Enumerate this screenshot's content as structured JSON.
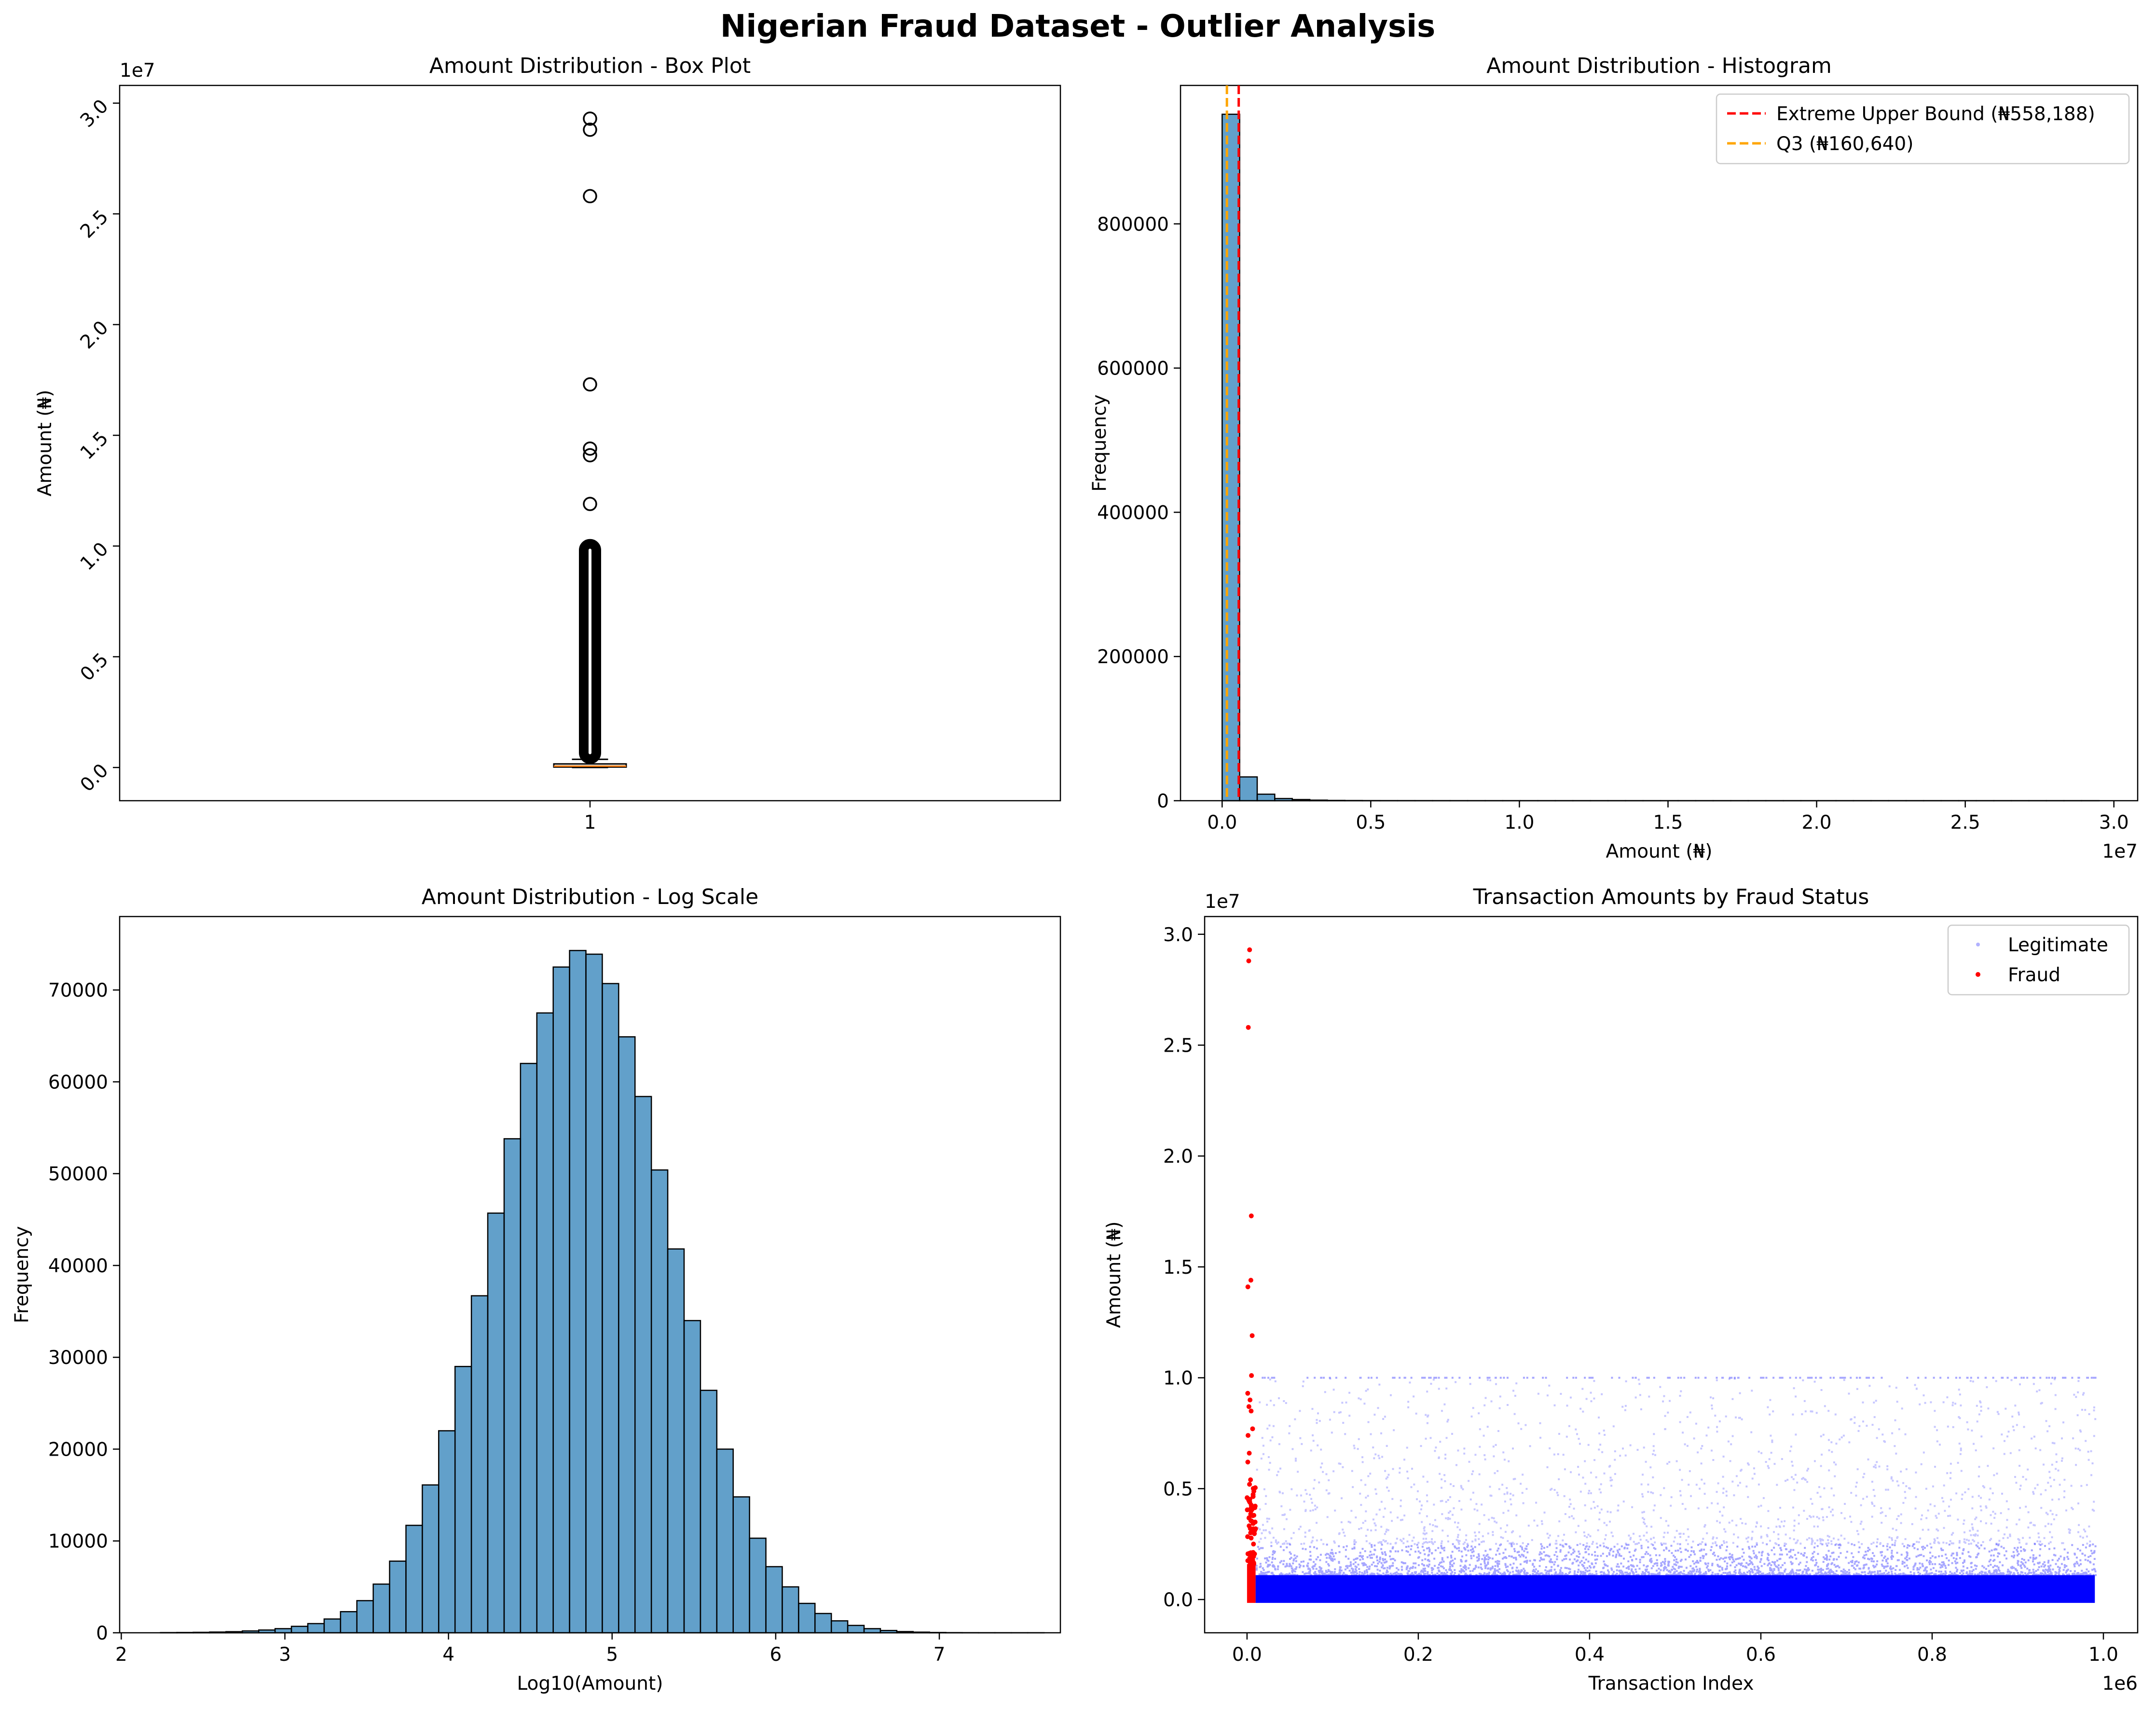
{
  "figure": {
    "title": "Nigerian Fraud Dataset - Outlier Analysis"
  },
  "chart_data": [
    {
      "id": "boxplot",
      "type": "box",
      "title": "Amount Distribution - Box Plot",
      "xlabel": "",
      "ylabel": "Amount (₦)",
      "categories": [
        "1"
      ],
      "y_scale_note": "1e7",
      "ylim": [
        -1500000,
        30800000
      ],
      "yticks": [
        0,
        5000000,
        10000000,
        15000000,
        20000000,
        25000000,
        30000000
      ],
      "ytick_labels": [
        "0.0",
        "0.5",
        "1.0",
        "1.5",
        "2.0",
        "2.5",
        "3.0"
      ],
      "box": {
        "q1": 20000,
        "median": 60000,
        "q3": 160640,
        "whisker_low": 0,
        "whisker_high": 370000
      },
      "flier_range": [
        380000,
        10100000
      ],
      "outliers_high": [
        11900000,
        14100000,
        14400000,
        17300000,
        25800000,
        28800000,
        29300000
      ],
      "colors": {
        "box": "#000000",
        "median": "#ff7f0e"
      }
    },
    {
      "id": "histogram",
      "type": "bar",
      "title": "Amount Distribution - Histogram",
      "xlabel": "Amount (₦)",
      "ylabel": "Frequency",
      "x_scale_note": "1e7",
      "xlim": [
        -1400000,
        30800000
      ],
      "ylim": [
        0,
        992000
      ],
      "xticks": [
        0,
        5000000,
        10000000,
        15000000,
        20000000,
        25000000,
        30000000
      ],
      "xtick_labels": [
        "0.0",
        "0.5",
        "1.0",
        "1.5",
        "2.0",
        "2.5",
        "3.0"
      ],
      "yticks": [
        0,
        200000,
        400000,
        600000,
        800000
      ],
      "ytick_labels": [
        "0",
        "200000",
        "400000",
        "600000",
        "800000"
      ],
      "bin_start": 0,
      "bin_width": 590000,
      "values": [
        952000,
        33000,
        9000,
        3000,
        1600,
        800,
        400,
        250,
        150,
        100,
        80,
        60,
        40,
        30,
        20,
        15,
        15,
        10,
        10,
        10,
        10,
        8,
        6,
        5,
        4,
        3,
        3,
        2,
        2,
        2,
        2,
        2,
        2,
        2,
        2,
        2,
        2,
        2,
        2,
        2,
        2,
        2,
        2,
        2,
        2,
        2,
        2,
        2,
        2,
        2
      ],
      "color": "#1f77b4",
      "vlines": [
        {
          "label": "Extreme Upper Bound (₦558,188)",
          "x": 558188,
          "color": "#ff0000"
        },
        {
          "label": "Q3 (₦160,640)",
          "x": 160640,
          "color": "#ffa500"
        }
      ],
      "legend_position": "top-right"
    },
    {
      "id": "loghist",
      "type": "bar",
      "title": "Amount Distribution - Log Scale",
      "xlabel": "Log10(Amount)",
      "ylabel": "Frequency",
      "xlim": [
        1.99,
        7.74
      ],
      "ylim": [
        0,
        78000
      ],
      "xticks": [
        2,
        3,
        4,
        5,
        6,
        7
      ],
      "xtick_labels": [
        "2",
        "3",
        "4",
        "5",
        "6",
        "7"
      ],
      "yticks": [
        0,
        10000,
        20000,
        30000,
        40000,
        50000,
        60000,
        70000
      ],
      "ytick_labels": [
        "0",
        "10000",
        "20000",
        "30000",
        "40000",
        "50000",
        "60000",
        "70000"
      ],
      "bin_start": 2.24,
      "bin_width": 0.1,
      "values": [
        20,
        30,
        50,
        80,
        120,
        200,
        300,
        450,
        700,
        1000,
        1500,
        2300,
        3500,
        5300,
        7800,
        11700,
        16100,
        22000,
        29000,
        36700,
        45700,
        53800,
        62000,
        67500,
        72500,
        74300,
        73900,
        70700,
        64900,
        58400,
        50400,
        41800,
        34000,
        26400,
        20000,
        14800,
        10300,
        7200,
        5000,
        3200,
        2100,
        1300,
        800,
        450,
        250,
        130,
        70,
        30,
        15,
        8,
        4,
        2,
        1,
        1
      ],
      "color": "#1f77b4"
    },
    {
      "id": "scatter",
      "type": "scatter",
      "title": "Transaction Amounts by Fraud Status",
      "xlabel": "Transaction Index",
      "ylabel": "Amount (₦)",
      "x_scale_note": "1e6",
      "y_scale_note": "1e7",
      "xlim": [
        -49500,
        1040000
      ],
      "ylim": [
        -1500000,
        30800000
      ],
      "xticks": [
        0,
        200000,
        400000,
        600000,
        800000,
        1000000
      ],
      "xtick_labels": [
        "0.0",
        "0.2",
        "0.4",
        "0.6",
        "0.8",
        "1.0"
      ],
      "yticks": [
        0,
        5000000,
        10000000,
        15000000,
        20000000,
        25000000,
        30000000
      ],
      "ytick_labels": [
        "0.0",
        "0.5",
        "1.0",
        "1.5",
        "2.0",
        "2.5",
        "3.0"
      ],
      "n_transactions": 990000,
      "fraud_index_range": [
        0,
        10000
      ],
      "series": [
        {
          "name": "Legitimate",
          "color": "#0000ff"
        },
        {
          "name": "Fraud",
          "color": "#ff0000",
          "notable_points": [
            [
              2000,
              28800000
            ],
            [
              3000,
              29300000
            ],
            [
              1500,
              25800000
            ],
            [
              5000,
              17300000
            ],
            [
              1000,
              14100000
            ],
            [
              4500,
              14400000
            ],
            [
              6000,
              11900000
            ],
            [
              5200,
              10100000
            ],
            [
              800,
              9300000
            ],
            [
              3500,
              9000000
            ],
            [
              2200,
              8700000
            ],
            [
              4800,
              8500000
            ],
            [
              1200,
              7400000
            ],
            [
              6500,
              7700000
            ],
            [
              900,
              6200000
            ],
            [
              2600,
              6600000
            ],
            [
              4100,
              5400000
            ]
          ]
        }
      ],
      "legend_position": "top-right"
    }
  ]
}
